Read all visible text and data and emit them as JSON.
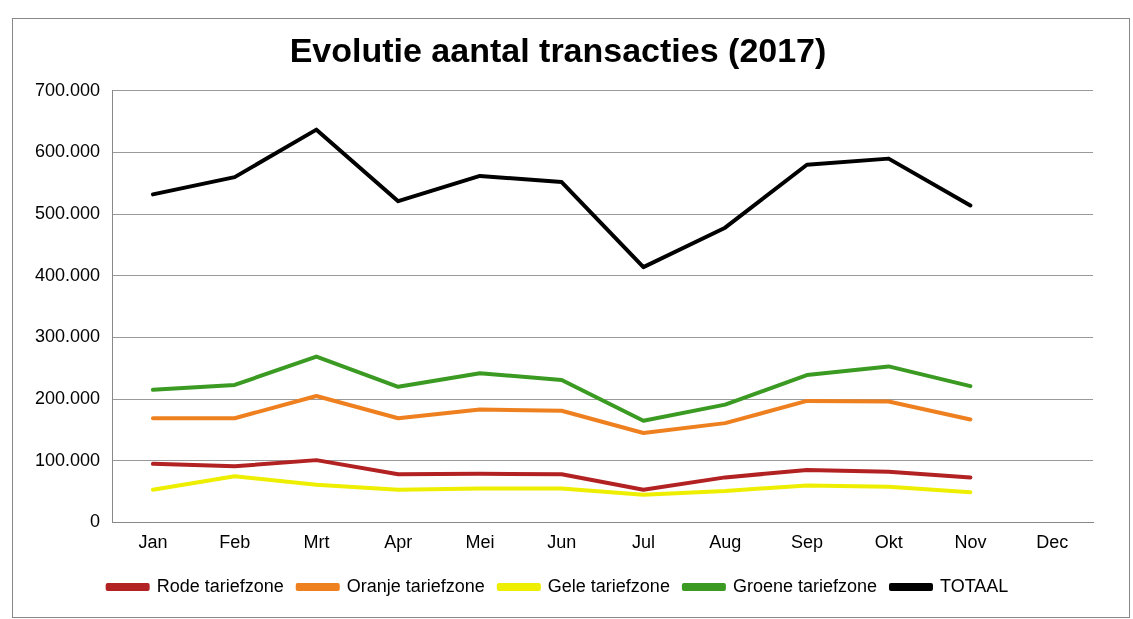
{
  "chart_data": {
    "type": "line",
    "title": "Evolutie aantal transacties (2017)",
    "categories": [
      "Jan",
      "Feb",
      "Mrt",
      "Apr",
      "Mei",
      "Jun",
      "Jul",
      "Aug",
      "Sep",
      "Okt",
      "Nov",
      "Dec"
    ],
    "series": [
      {
        "name": "Rode tariefzone",
        "color": "#b22222",
        "values": [
          95000,
          91000,
          101000,
          78000,
          79000,
          78000,
          53000,
          73000,
          85000,
          82000,
          73000,
          null
        ]
      },
      {
        "name": "Oranje tariefzone",
        "color": "#ee8020",
        "values": [
          169000,
          169000,
          205000,
          169000,
          183000,
          181000,
          145000,
          161000,
          197000,
          196000,
          167000,
          null
        ]
      },
      {
        "name": "Gele tariefzone",
        "color": "#eeee00",
        "values": [
          53000,
          75000,
          61000,
          53000,
          55000,
          55000,
          45000,
          51000,
          60000,
          58000,
          49000,
          null
        ]
      },
      {
        "name": "Groene tariefzone",
        "color": "#3a9a22",
        "values": [
          215000,
          223000,
          269000,
          220000,
          242000,
          231000,
          165000,
          191000,
          239000,
          253000,
          221000,
          null
        ]
      },
      {
        "name": "TOTAAL",
        "color": "#000000",
        "values": [
          532000,
          560000,
          637000,
          521000,
          562000,
          552000,
          414000,
          478000,
          580000,
          590000,
          514000,
          null
        ]
      }
    ],
    "ylim": [
      0,
      700000
    ],
    "yticks": [
      {
        "value": 0,
        "label": "0"
      },
      {
        "value": 100000,
        "label": "100.000"
      },
      {
        "value": 200000,
        "label": "200.000"
      },
      {
        "value": 300000,
        "label": "300.000"
      },
      {
        "value": 400000,
        "label": "400.000"
      },
      {
        "value": 500000,
        "label": "500.000"
      },
      {
        "value": 600000,
        "label": "600.000"
      },
      {
        "value": 700000,
        "label": "700.000"
      }
    ],
    "grid": "y",
    "legend": "bottom",
    "marker": "none",
    "line_style": "solid"
  }
}
